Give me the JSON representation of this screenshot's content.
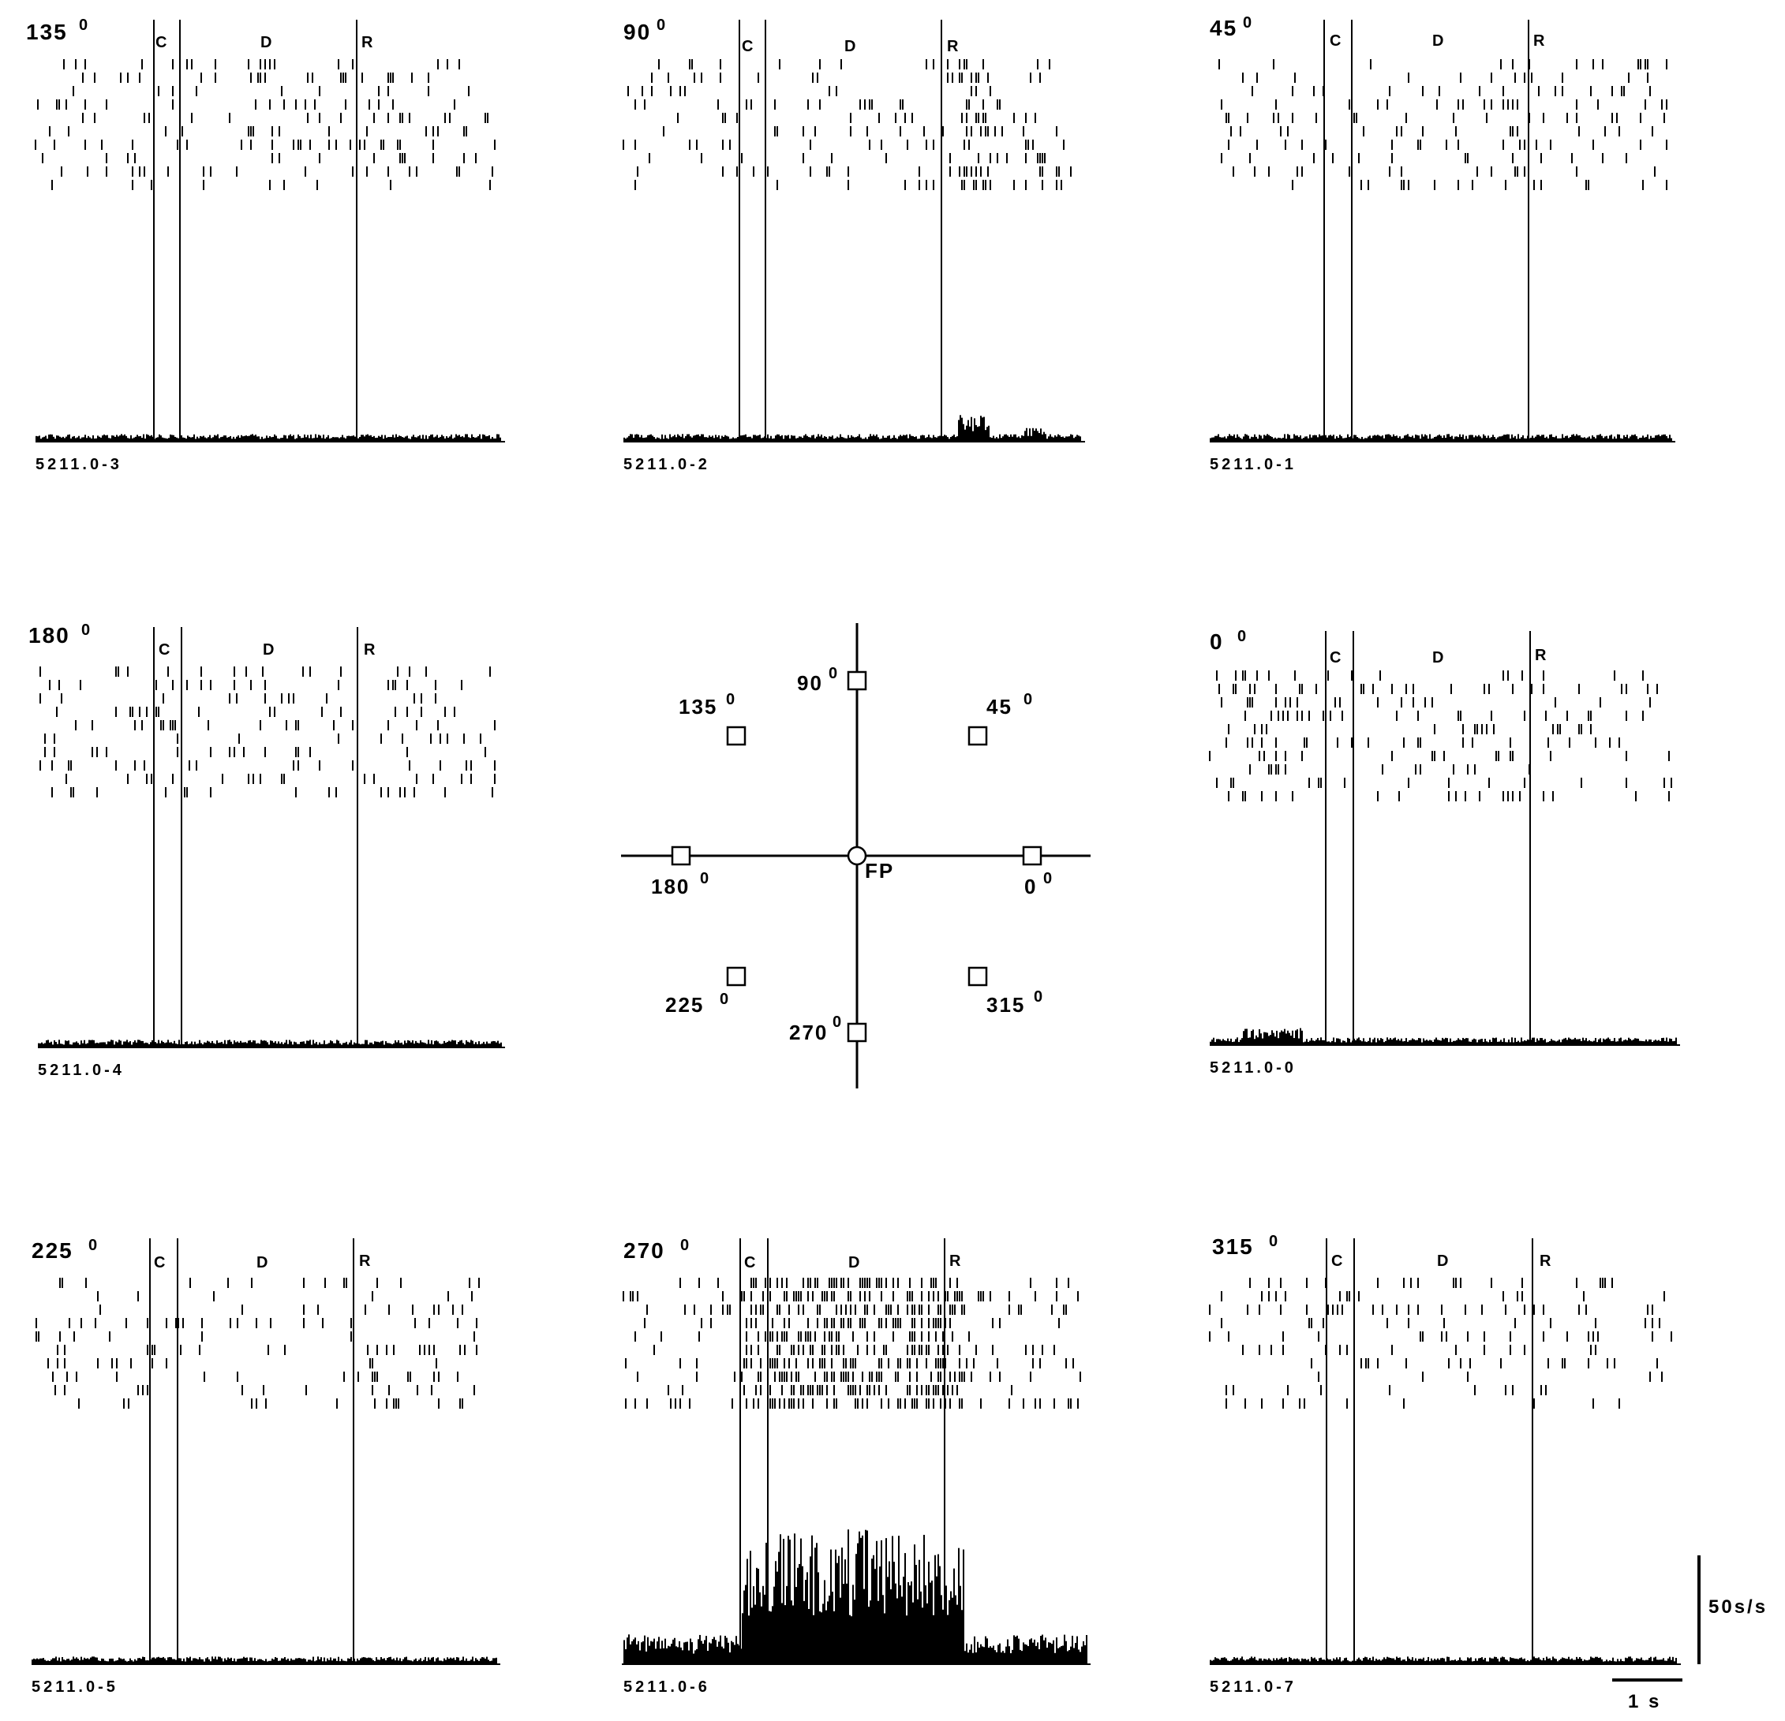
{
  "chart_data": [
    {
      "type": "raster-histogram",
      "angle_label": "135",
      "file_id": "5211.0-3",
      "epochs": [
        "C",
        "D",
        "R"
      ],
      "modulation": "low"
    },
    {
      "type": "raster-histogram",
      "angle_label": "90",
      "file_id": "5211.0-2",
      "epochs": [
        "C",
        "D",
        "R"
      ],
      "modulation": "response"
    },
    {
      "type": "raster-histogram",
      "angle_label": "45",
      "file_id": "5211.0-1",
      "epochs": [
        "C",
        "D",
        "R"
      ],
      "modulation": "low"
    },
    {
      "type": "raster-histogram",
      "angle_label": "180",
      "file_id": "5211.0-4",
      "epochs": [
        "C",
        "D",
        "R"
      ],
      "modulation": "low"
    },
    {
      "type": "raster-histogram",
      "angle_label": "0",
      "file_id": "5211.0-0",
      "epochs": [
        "C",
        "D",
        "R"
      ],
      "modulation": "pre-cue"
    },
    {
      "type": "raster-histogram",
      "angle_label": "225",
      "file_id": "5211.0-5",
      "epochs": [
        "C",
        "D",
        "R"
      ],
      "modulation": "low"
    },
    {
      "type": "raster-histogram",
      "angle_label": "270",
      "file_id": "5211.0-6",
      "epochs": [
        "C",
        "D",
        "R"
      ],
      "modulation": "delay"
    },
    {
      "type": "raster-histogram",
      "angle_label": "315",
      "file_id": "5211.0-7",
      "epochs": [
        "C",
        "D",
        "R"
      ],
      "modulation": "low"
    }
  ],
  "layout_diagram": {
    "fixation_label": "FP",
    "targets": [
      "0",
      "45",
      "90",
      "135",
      "180",
      "225",
      "270",
      "315"
    ]
  },
  "scale_bars": {
    "rate_label": "50s/s",
    "time_label": "1 s"
  },
  "degree_symbol": "0"
}
